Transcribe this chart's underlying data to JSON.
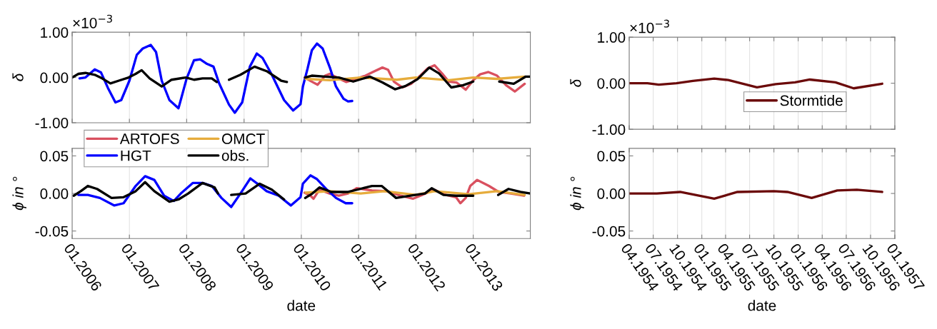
{
  "chart_data": [
    {
      "type": "line",
      "ylabel": "δ",
      "annotations": [
        "×10$^{−3}$"
      ],
      "xlim": [
        "2006-01-01",
        "2013-12-31"
      ],
      "ylim": [
        -1,
        1
      ],
      "xticks": [
        {
          "value": "2006-01-01",
          "label": null
        },
        {
          "value": "2007-01-01",
          "label": null
        },
        {
          "value": "2008-01-01",
          "label": null
        },
        {
          "value": "2009-01-01",
          "label": null
        },
        {
          "value": "2010-01-01",
          "label": null
        },
        {
          "value": "2011-01-01",
          "label": null
        },
        {
          "value": "2012-01-01",
          "label": null
        },
        {
          "value": "2013-01-01",
          "label": null
        }
      ],
      "yticks": [
        {
          "value": -1,
          "label": "-1.00"
        },
        {
          "value": 0,
          "label": "0.00"
        },
        {
          "value": 1,
          "label": "1.00"
        }
      ],
      "tick_labels": "y",
      "grid": "x",
      "legend": "bottom left",
      "series": [
        {
          "name": "ARTOFS",
          "color": "#d9505f",
          "x": [
            "2010-01-22",
            "2010-03-02",
            "2010-04-15",
            "2010-06-02",
            "2010-07-01",
            "2010-08-14",
            "2010-10-15",
            "2010-12-16",
            "2011-02-14",
            "2011-04-01",
            "2011-06-02",
            "2011-07-08",
            "2011-08-14",
            "2011-10-08",
            "2011-12-02",
            "2012-01-29",
            "2012-03-16",
            "2012-04-29",
            "2012-06-16",
            "2012-07-29",
            "2012-09-16",
            "2012-11-14",
            "2013-01-01",
            "2013-02-14",
            "2013-04-08",
            "2013-06-02",
            "2013-07-29",
            "2013-09-23",
            "2013-11-25"
          ],
          "values": [
            0,
            -0.08,
            -0.16,
            0.04,
            0.08,
            0,
            -0.1,
            -0.03,
            0.04,
            0.12,
            0.22,
            0.17,
            -0.09,
            -0.22,
            -0.14,
            0.04,
            0.2,
            0.27,
            0.09,
            -0.09,
            -0.11,
            -0.27,
            -0.06,
            0.07,
            0.12,
            0.04,
            -0.17,
            -0.31,
            -0.14
          ]
        },
        {
          "name": "HGT",
          "color": "#0000ff",
          "x": [
            "2006-02-17",
            "2006-03-27",
            "2006-05-25",
            "2006-07-04",
            "2006-08-17",
            "2006-10-04",
            "2006-11-10",
            "2007-01-01",
            "2007-02-17",
            "2007-03-27",
            "2007-05-17",
            "2007-06-20",
            "2007-07-26",
            "2007-09-13",
            "2007-11-10",
            "2008-01-01",
            "2008-02-17",
            "2008-03-27",
            "2008-05-10",
            "2008-06-20",
            "2008-07-26",
            "2008-09-27",
            "2008-11-03",
            "2008-12-20",
            "2009-02-07",
            "2009-03-23",
            "2009-04-29",
            "2009-06-27",
            "2009-09-13",
            "2009-11-10",
            "2009-12-27",
            "2010-01-11",
            "2010-02-10",
            "2010-03-09",
            "2010-04-11",
            "2010-05-17",
            "2010-07-04",
            "2010-08-10",
            "2010-09-27",
            "2010-10-26",
            "2010-11-21"
          ],
          "values": [
            -0.02,
            0.0,
            0.18,
            0.11,
            -0.23,
            -0.55,
            -0.5,
            -0.07,
            0.5,
            0.64,
            0.72,
            0.56,
            -0.07,
            -0.5,
            -0.68,
            -0.02,
            0.38,
            0.4,
            0.3,
            0.24,
            -0.13,
            -0.6,
            -0.78,
            -0.55,
            0.24,
            0.53,
            0.43,
            0.06,
            -0.5,
            -0.73,
            -0.59,
            -0.2,
            0.2,
            0.6,
            0.75,
            0.64,
            0.2,
            -0.2,
            -0.47,
            -0.53,
            -0.52
          ]
        },
        {
          "name": "OMCT",
          "color": "#e6ac3c",
          "x": [
            "2010-01-29",
            "2010-07-01",
            "2011-01-15",
            "2011-09-02",
            "2012-01-01",
            "2012-07-29",
            "2013-01-01",
            "2013-06-02",
            "2013-11-25"
          ],
          "values": [
            -0.03,
            -0.06,
            0,
            -0.05,
            0,
            -0.06,
            0,
            -0.03,
            0.02
          ]
        },
        {
          "name": "obs.",
          "color": "#000000",
          "x": [
            "2006-01-01",
            "2006-02-10",
            "2006-03-27",
            "2006-05-25",
            "2006-07-11",
            "2006-09-02",
            "2006-10-26",
            "2006-12-27",
            "2007-02-10",
            "2007-03-20",
            "2007-05-10",
            "2007-07-26",
            "2007-09-27",
            "2007-12-27",
            "2008-02-17",
            "2008-04-11",
            "2008-06-09",
            "2008-07-11",
            "2008-08-14",
            "2008-09-27",
            "2008-12-09",
            "2009-03-09",
            "2009-05-25",
            "2009-08-25",
            "2009-10-01",
            "2009-11-25",
            "2010-01-26",
            "2010-03-09",
            "2010-06-02",
            "2010-08-28",
            "2010-11-28",
            "2011-03-13",
            "2011-06-02",
            "2011-08-21",
            "2011-10-26",
            "2012-01-11",
            "2012-03-27",
            "2012-05-28",
            "2012-08-14",
            "2012-10-29",
            "2013-01-01",
            "2013-03-13",
            "2013-06-16",
            "2013-09-16",
            "2013-12-02",
            "2013-12-31"
          ],
          "values": [
            0.0,
            0.08,
            0.1,
            0.06,
            -0.02,
            -0.13,
            -0.07,
            0.0,
            0.08,
            0.16,
            -0.02,
            -0.2,
            -0.05,
            0.0,
            -0.05,
            -0.02,
            -0.02,
            -0.1,
            null,
            -0.05,
            0.06,
            0.24,
            0.14,
            -0.07,
            -0.1,
            null,
            0,
            0.04,
            0.02,
            0,
            -0.09,
            0.02,
            -0.11,
            -0.26,
            -0.19,
            -0.04,
            0.22,
            0.09,
            -0.22,
            -0.17,
            -0.09,
            null,
            -0.09,
            -0.14,
            0.02,
            0.02
          ]
        }
      ]
    },
    {
      "type": "line",
      "ylabel": "ϕ in °",
      "xlabel": "date",
      "xlim": [
        "2006-01-01",
        "2013-12-31"
      ],
      "ylim": [
        -0.06,
        0.06
      ],
      "xticks": [
        {
          "value": "2006-01-01",
          "label": "01.2006"
        },
        {
          "value": "2007-01-01",
          "label": "01.2007"
        },
        {
          "value": "2008-01-01",
          "label": "01.2008"
        },
        {
          "value": "2009-01-01",
          "label": "01.2009"
        },
        {
          "value": "2010-01-01",
          "label": "01.2010"
        },
        {
          "value": "2011-01-01",
          "label": "01.2011"
        },
        {
          "value": "2012-01-01",
          "label": "01.2012"
        },
        {
          "value": "2013-01-01",
          "label": "01.2013"
        }
      ],
      "yticks": [
        {
          "value": -0.05,
          "label": "-0.05"
        },
        {
          "value": 0,
          "label": "0.00"
        },
        {
          "value": 0.05,
          "label": "0.05"
        }
      ],
      "grid": "x",
      "series": [
        {
          "color": "#d9505f",
          "x": [
            "2010-01-22",
            "2010-02-28",
            "2010-03-20",
            "2010-04-26",
            "2010-06-27",
            "2010-08-28",
            "2010-10-26",
            "2010-12-20",
            "2011-03-27",
            "2011-06-27",
            "2011-09-27",
            "2011-12-13",
            "2012-02-10",
            "2012-04-26",
            "2012-07-11",
            "2012-09-13",
            "2012-10-11",
            "2012-11-14",
            "2012-12-13",
            "2013-01-26",
            "2013-04-11",
            "2013-06-13",
            "2013-08-28",
            "2013-11-21"
          ],
          "values": [
            0.001,
            -0.003,
            -0.007,
            0.005,
            0,
            -0.003,
            0,
            0.007,
            0.004,
            0.003,
            -0.003,
            -0.007,
            -0.002,
            0.005,
            -0.002,
            -0.005,
            -0.013,
            -0.006,
            0.01,
            0.018,
            0.01,
            0.002,
            0,
            -0.003
          ]
        },
        {
          "color": "#0000ff",
          "x": [
            "2006-02-10",
            "2006-04-11",
            "2006-06-27",
            "2006-09-27",
            "2006-11-25",
            "2007-02-10",
            "2007-04-11",
            "2007-06-09",
            "2007-08-10",
            "2007-10-11",
            "2007-11-25",
            "2008-02-10",
            "2008-04-11",
            "2008-06-09",
            "2008-08-10",
            "2008-10-11",
            "2008-12-09",
            "2009-02-10",
            "2009-03-27",
            "2009-05-25",
            "2009-08-10",
            "2009-10-26",
            "2009-12-27",
            "2010-01-11",
            "2010-02-28",
            "2010-04-11",
            "2010-06-13",
            "2010-08-10",
            "2010-10-11",
            "2010-11-21"
          ],
          "values": [
            -0.002,
            -0.002,
            -0.006,
            -0.016,
            -0.013,
            0.01,
            0.023,
            0.018,
            -0.003,
            -0.01,
            0,
            0.014,
            0.014,
            0.01,
            -0.006,
            -0.018,
            0,
            0.02,
            0.013,
            0.003,
            -0.003,
            -0.016,
            -0.005,
            0.013,
            0.024,
            0.019,
            0.005,
            -0.006,
            -0.013,
            -0.013
          ]
        },
        {
          "color": "#e6ac3c",
          "x": [
            "2010-01-29",
            "2010-07-01",
            "2011-01-15",
            "2011-06-16",
            "2012-01-01",
            "2012-04-29",
            "2012-12-02",
            "2013-06-02",
            "2013-11-25"
          ],
          "values": [
            0.001,
            0.003,
            0,
            0.003,
            -0.002,
            0.003,
            -0.001,
            0.003,
            -0.002
          ]
        },
        {
          "color": "#000000",
          "x": [
            "2006-01-11",
            "2006-02-25",
            "2006-04-11",
            "2006-06-09",
            "2006-09-09",
            "2006-11-25",
            "2007-02-10",
            "2007-04-11",
            "2007-06-09",
            "2007-09-13",
            "2007-11-10",
            "2008-01-11",
            "2008-04-11",
            "2008-06-27",
            "2008-07-19",
            "2008-08-25",
            "2008-10-11",
            "2009-01-11",
            "2009-04-11",
            "2009-06-27",
            "2009-09-13",
            "2009-11-25",
            "2010-01-26",
            "2010-03-13",
            "2010-04-26",
            "2010-07-11",
            "2010-10-26",
            "2011-01-11",
            "2011-03-27",
            "2011-05-28",
            "2011-08-28",
            "2011-11-28",
            "2012-02-28",
            "2012-04-11",
            "2012-06-27",
            "2012-09-13",
            "2013-01-01",
            "2013-03-13",
            "2013-06-09",
            "2013-08-14",
            "2013-10-29",
            "2013-12-31"
          ],
          "values": [
            -0.003,
            0.003,
            0.01,
            0.006,
            -0.006,
            -0.005,
            0.003,
            0.015,
            0.003,
            -0.011,
            -0.008,
            0,
            0.014,
            0.008,
            0,
            null,
            -0.002,
            0,
            0.013,
            0.005,
            -0.008,
            null,
            -0.006,
            0,
            0.008,
            0.002,
            0.002,
            0.006,
            0.01,
            0.01,
            -0.006,
            -0.003,
            0,
            0.007,
            -0.002,
            -0.003,
            -0.003,
            null,
            -0.002,
            0.006,
            0.002,
            0
          ]
        }
      ]
    },
    {
      "type": "line",
      "ylabel": "δ",
      "annotations": [
        "×10$^{−3}$"
      ],
      "xlim": [
        "1954-04-01",
        "1957-01-01"
      ],
      "ylim": [
        -1,
        1
      ],
      "xticks": [
        {
          "value": "1954-04-01",
          "label": null
        },
        {
          "value": "1954-07-01",
          "label": null
        },
        {
          "value": "1954-10-01",
          "label": null
        },
        {
          "value": "1955-01-01",
          "label": null
        },
        {
          "value": "1955-04-01",
          "label": null
        },
        {
          "value": "1955-07-01",
          "label": null
        },
        {
          "value": "1955-10-01",
          "label": null
        },
        {
          "value": "1956-01-01",
          "label": null
        },
        {
          "value": "1956-04-01",
          "label": null
        },
        {
          "value": "1956-07-01",
          "label": null
        },
        {
          "value": "1956-10-01",
          "label": null
        },
        {
          "value": "1957-01-01",
          "label": null
        }
      ],
      "yticks": [
        {
          "value": -1,
          "label": "-1.00"
        },
        {
          "value": 0,
          "label": "0.00"
        },
        {
          "value": 1,
          "label": "1.00"
        }
      ],
      "tick_labels": "y",
      "grid": "x",
      "legend": "bottom right",
      "series": [
        {
          "name": "Stormtide",
          "color": "#6b0a0a",
          "x": [
            "1954-04-01",
            "1954-06-09",
            "1954-07-22",
            "1954-09-27",
            "1954-11-28",
            "1955-02-17",
            "1955-04-11",
            "1955-07-29",
            "1955-10-08",
            "1955-12-20",
            "1956-02-14",
            "1956-05-21",
            "1956-07-29",
            "1956-11-14"
          ],
          "values": [
            0,
            0,
            -0.03,
            0,
            0.05,
            0.1,
            0.07,
            -0.09,
            -0.02,
            0.02,
            0.08,
            0.02,
            -0.11,
            -0.01
          ]
        }
      ]
    },
    {
      "type": "line",
      "ylabel": "ϕ in °",
      "xlabel": "date",
      "xlim": [
        "1954-04-01",
        "1957-01-01"
      ],
      "ylim": [
        -0.06,
        0.06
      ],
      "xticks": [
        {
          "value": "1954-04-01",
          "label": "04.1954"
        },
        {
          "value": "1954-07-01",
          "label": "07.1954"
        },
        {
          "value": "1954-10-01",
          "label": "10.1954"
        },
        {
          "value": "1955-01-01",
          "label": "01.1955"
        },
        {
          "value": "1955-04-01",
          "label": "04.1955"
        },
        {
          "value": "1955-07-01",
          "label": "07.1955"
        },
        {
          "value": "1955-10-01",
          "label": "10.1955"
        },
        {
          "value": "1956-01-01",
          "label": "01.1956"
        },
        {
          "value": "1956-04-01",
          "label": "04.1956"
        },
        {
          "value": "1956-07-01",
          "label": "07.1956"
        },
        {
          "value": "1956-10-01",
          "label": "10.1956"
        },
        {
          "value": "1957-01-01",
          "label": "01.1957"
        }
      ],
      "yticks": [
        {
          "value": -0.05,
          "label": "-0.05"
        },
        {
          "value": 0,
          "label": "0.00"
        },
        {
          "value": 0.05,
          "label": "0.05"
        }
      ],
      "grid": "x",
      "series": [
        {
          "color": "#6b0a0a",
          "x": [
            "1954-04-01",
            "1954-07-15",
            "1954-10-11",
            "1955-02-17",
            "1955-05-16",
            "1955-10-01",
            "1955-11-21",
            "1956-02-21",
            "1956-05-28",
            "1956-08-10",
            "1956-11-14"
          ],
          "values": [
            0,
            0,
            0.002,
            -0.007,
            0.002,
            0.003,
            0.002,
            -0.006,
            0.004,
            0.005,
            0.002
          ]
        }
      ]
    }
  ]
}
